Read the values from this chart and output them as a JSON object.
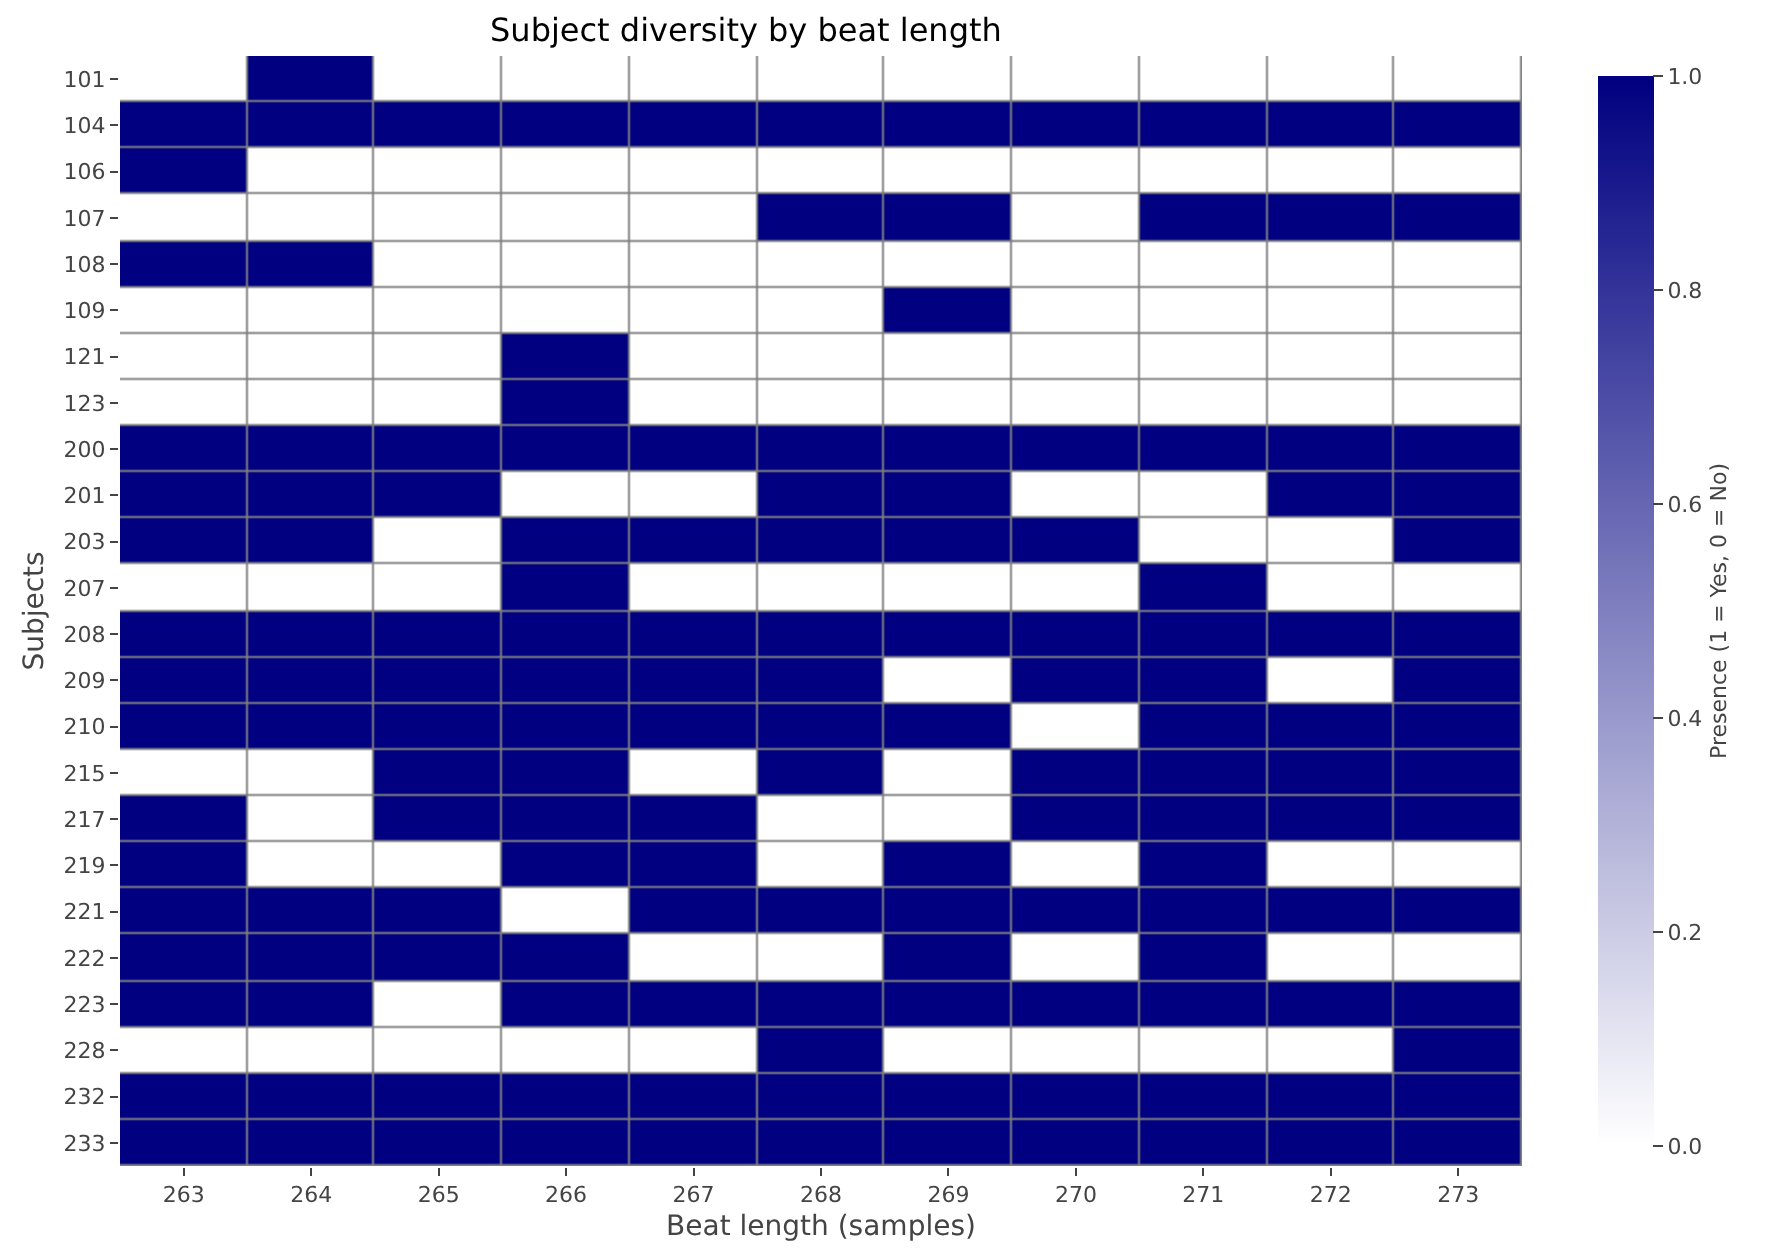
{
  "chart_data": {
    "type": "heatmap",
    "title": "Subject diversity by beat length",
    "xlabel": "Beat length (samples)",
    "ylabel": "Subjects",
    "clabel": "Presence (1 = Yes, 0 = No)",
    "categories": [
      "263",
      "264",
      "265",
      "266",
      "267",
      "268",
      "269",
      "270",
      "271",
      "272",
      "273"
    ],
    "y_categories": [
      "101",
      "104",
      "106",
      "107",
      "108",
      "109",
      "121",
      "123",
      "200",
      "201",
      "203",
      "207",
      "208",
      "209",
      "210",
      "215",
      "217",
      "219",
      "221",
      "222",
      "223",
      "228",
      "232",
      "233"
    ],
    "cells": [
      [
        0,
        1,
        0,
        0,
        0,
        0,
        0,
        0,
        0,
        0,
        0
      ],
      [
        1,
        1,
        1,
        1,
        1,
        1,
        1,
        1,
        1,
        1,
        1
      ],
      [
        1,
        0,
        0,
        0,
        0,
        0,
        0,
        0,
        0,
        0,
        0
      ],
      [
        0,
        0,
        0,
        0,
        0,
        1,
        1,
        0,
        1,
        1,
        1
      ],
      [
        1,
        1,
        0,
        0,
        0,
        0,
        0,
        0,
        0,
        0,
        0
      ],
      [
        0,
        0,
        0,
        0,
        0,
        0,
        1,
        0,
        0,
        0,
        0
      ],
      [
        0,
        0,
        0,
        1,
        0,
        0,
        0,
        0,
        0,
        0,
        0
      ],
      [
        0,
        0,
        0,
        1,
        0,
        0,
        0,
        0,
        0,
        0,
        0
      ],
      [
        1,
        1,
        1,
        1,
        1,
        1,
        1,
        1,
        1,
        1,
        1
      ],
      [
        1,
        1,
        1,
        0,
        0,
        1,
        1,
        0,
        0,
        1,
        1
      ],
      [
        1,
        1,
        0,
        1,
        1,
        1,
        1,
        1,
        0,
        0,
        1
      ],
      [
        0,
        0,
        0,
        1,
        0,
        0,
        0,
        0,
        1,
        0,
        0
      ],
      [
        1,
        1,
        1,
        1,
        1,
        1,
        1,
        1,
        1,
        1,
        1
      ],
      [
        1,
        1,
        1,
        1,
        1,
        1,
        0,
        1,
        1,
        0,
        1
      ],
      [
        1,
        1,
        1,
        1,
        1,
        1,
        1,
        0,
        1,
        1,
        1
      ],
      [
        0,
        0,
        1,
        1,
        0,
        1,
        0,
        1,
        1,
        1,
        1
      ],
      [
        1,
        0,
        1,
        1,
        1,
        0,
        0,
        1,
        1,
        1,
        1
      ],
      [
        1,
        0,
        0,
        1,
        1,
        0,
        1,
        0,
        1,
        0,
        0
      ],
      [
        1,
        1,
        1,
        0,
        1,
        1,
        1,
        1,
        1,
        1,
        1
      ],
      [
        1,
        1,
        1,
        1,
        0,
        0,
        1,
        0,
        1,
        0,
        0
      ],
      [
        1,
        1,
        0,
        1,
        1,
        1,
        1,
        1,
        1,
        1,
        1
      ],
      [
        0,
        0,
        0,
        0,
        0,
        1,
        0,
        0,
        0,
        0,
        1
      ],
      [
        1,
        1,
        1,
        1,
        1,
        1,
        1,
        1,
        1,
        1,
        1
      ],
      [
        1,
        1,
        1,
        1,
        1,
        1,
        1,
        1,
        1,
        1,
        1
      ]
    ],
    "colors": [
      "#ffffff",
      "#000080"
    ],
    "clim": [
      0,
      1
    ],
    "cticks": [
      {
        "value": 0,
        "label": "0.0"
      },
      {
        "value": 0.2,
        "label": "0.2"
      },
      {
        "value": 0.4,
        "label": "0.4"
      },
      {
        "value": 0.6,
        "label": "0.6"
      },
      {
        "value": 0.8,
        "label": "0.8"
      },
      {
        "value": 1,
        "label": "1.0"
      }
    ]
  }
}
